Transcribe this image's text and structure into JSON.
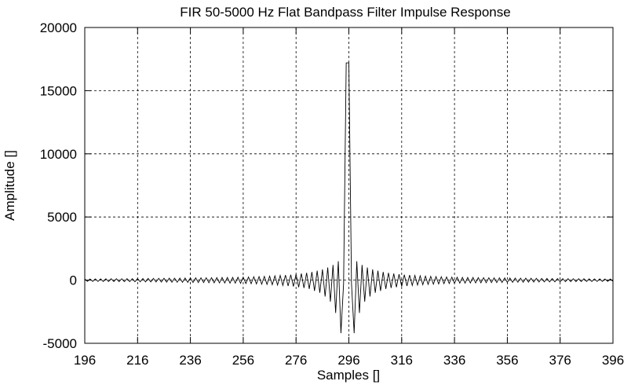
{
  "chart_data": {
    "type": "line",
    "title": "FIR 50-5000 Hz Flat Bandpass Filter Impulse Response",
    "xlabel": "Samples []",
    "ylabel": "Amplitude []",
    "color": "#000000",
    "grid": true,
    "xlim": [
      196,
      396
    ],
    "xticks": [
      196,
      216,
      236,
      256,
      276,
      296,
      316,
      336,
      356,
      376,
      396
    ],
    "ylim": [
      -5000,
      20000
    ],
    "yticks": [
      -5000,
      0,
      5000,
      10000,
      15000,
      20000
    ],
    "x": [
      196,
      197,
      198,
      199,
      200,
      201,
      202,
      203,
      204,
      205,
      206,
      207,
      208,
      209,
      210,
      211,
      212,
      213,
      214,
      215,
      216,
      217,
      218,
      219,
      220,
      221,
      222,
      223,
      224,
      225,
      226,
      227,
      228,
      229,
      230,
      231,
      232,
      233,
      234,
      235,
      236,
      237,
      238,
      239,
      240,
      241,
      242,
      243,
      244,
      245,
      246,
      247,
      248,
      249,
      250,
      251,
      252,
      253,
      254,
      255,
      256,
      257,
      258,
      259,
      260,
      261,
      262,
      263,
      264,
      265,
      266,
      267,
      268,
      269,
      270,
      271,
      272,
      273,
      274,
      275,
      276,
      277,
      278,
      279,
      280,
      281,
      282,
      283,
      284,
      285,
      286,
      287,
      288,
      289,
      290,
      291,
      292,
      293,
      294,
      295,
      296,
      297,
      298,
      299,
      300,
      301,
      302,
      303,
      304,
      305,
      306,
      307,
      308,
      309,
      310,
      311,
      312,
      313,
      314,
      315,
      316,
      317,
      318,
      319,
      320,
      321,
      322,
      323,
      324,
      325,
      326,
      327,
      328,
      329,
      330,
      331,
      332,
      333,
      334,
      335,
      336,
      337,
      338,
      339,
      340,
      341,
      342,
      343,
      344,
      345,
      346,
      347,
      348,
      349,
      350,
      351,
      352,
      353,
      354,
      355,
      356,
      357,
      358,
      359,
      360,
      361,
      362,
      363,
      364,
      365,
      366,
      367,
      368,
      369,
      370,
      371,
      372,
      373,
      374,
      375,
      376,
      377,
      378,
      379,
      380,
      381,
      382,
      383,
      384,
      385,
      386,
      387,
      388,
      389,
      390,
      391,
      392,
      393,
      394,
      395,
      396
    ],
    "values": [
      95,
      -100,
      95,
      -100,
      100,
      -105,
      100,
      -110,
      105,
      -110,
      110,
      -115,
      110,
      -120,
      115,
      -120,
      120,
      -125,
      120,
      -130,
      125,
      -135,
      130,
      -140,
      135,
      -145,
      140,
      -150,
      145,
      -155,
      150,
      -160,
      155,
      -165,
      160,
      -170,
      165,
      -175,
      170,
      -180,
      175,
      -185,
      180,
      -190,
      185,
      -195,
      190,
      -205,
      195,
      -210,
      200,
      -220,
      210,
      -225,
      215,
      -235,
      220,
      -240,
      230,
      -250,
      240,
      -270,
      250,
      -280,
      270,
      -300,
      280,
      -320,
      300,
      -340,
      320,
      -360,
      340,
      -390,
      370,
      -420,
      400,
      -460,
      430,
      -500,
      470,
      -560,
      520,
      -620,
      580,
      -700,
      650,
      -850,
      750,
      -1000,
      850,
      -1300,
      1000,
      -1700,
      1200,
      -2600,
      1500,
      -4200,
      -300,
      17200,
      17200,
      -300,
      -4200,
      1500,
      -2600,
      1200,
      -1700,
      1000,
      -1300,
      850,
      -1000,
      750,
      -850,
      650,
      -700,
      580,
      -620,
      520,
      -560,
      470,
      -500,
      430,
      -460,
      400,
      -420,
      370,
      -390,
      340,
      -360,
      320,
      -340,
      300,
      -320,
      280,
      -300,
      270,
      -280,
      250,
      -270,
      240,
      -250,
      230,
      -240,
      220,
      -235,
      215,
      -225,
      210,
      -220,
      200,
      -210,
      195,
      -205,
      190,
      -195,
      185,
      -190,
      180,
      -185,
      175,
      -180,
      170,
      -175,
      165,
      -170,
      160,
      -165,
      155,
      -160,
      150,
      -155,
      145,
      -150,
      140,
      -145,
      135,
      -140,
      130,
      -135,
      125,
      -130,
      120,
      -125,
      120,
      -120,
      115,
      -120,
      110,
      -115,
      110,
      -110,
      105,
      -110,
      100,
      -105,
      100,
      -100,
      95,
      -100,
      95,
      -95
    ]
  }
}
